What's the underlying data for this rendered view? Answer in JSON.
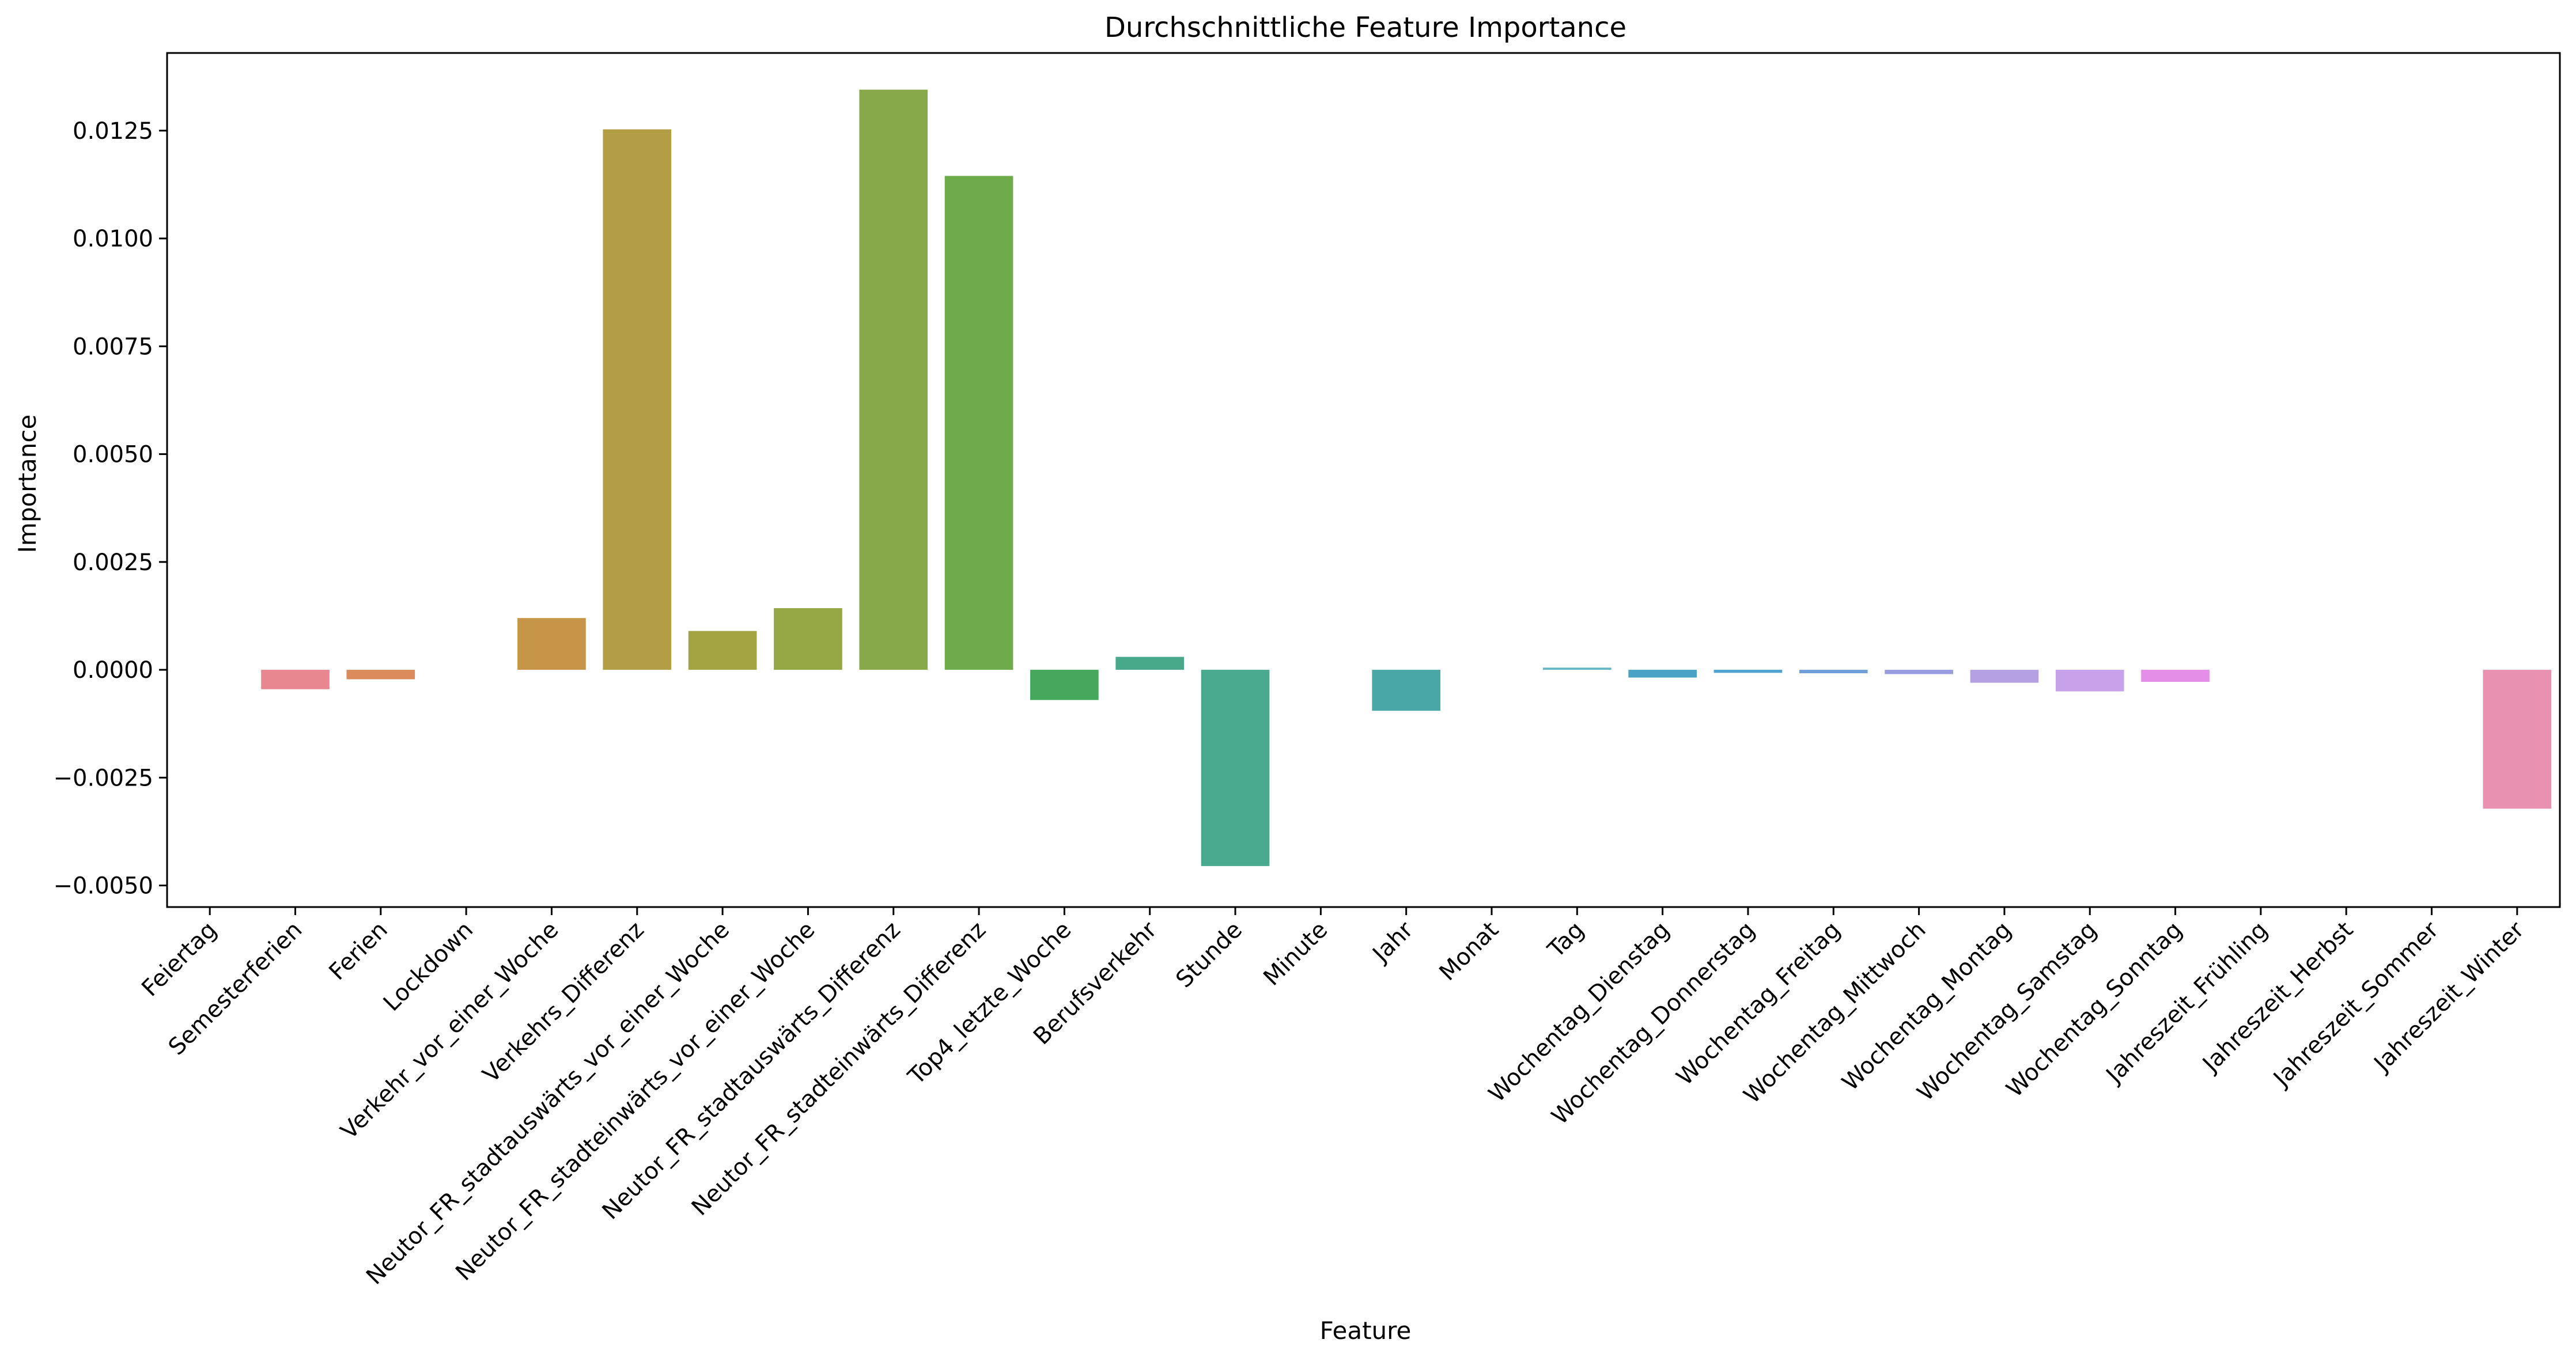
{
  "chart_data": {
    "type": "bar",
    "title": "Durchschnittliche Feature Importance",
    "xlabel": "Feature",
    "ylabel": "Importance",
    "ylim": [
      -0.0055,
      0.0143
    ],
    "yticks": [
      "−0.0050",
      "−0.0025",
      "0.0000",
      "0.0025",
      "0.0050",
      "0.0075",
      "0.0100",
      "0.0125"
    ],
    "ytick_values": [
      -0.005,
      -0.0025,
      0.0,
      0.0025,
      0.005,
      0.0075,
      0.01,
      0.0125
    ],
    "grid": false,
    "legend": "none",
    "categories": [
      "Feiertag",
      "Semesterferien",
      "Ferien",
      "Lockdown",
      "Verkehr_vor_einer_Woche",
      "Verkehrs_Differenz",
      "Neutor_FR_stadtauswärts_vor_einer_Woche",
      "Neutor_FR_stadteinwärts_vor_einer_Woche",
      "Neutor_FR_stadtauswärts_Differenz",
      "Neutor_FR_stadteinwärts_Differenz",
      "Top4_letzte_Woche",
      "Berufsverkehr",
      "Stunde",
      "Minute",
      "Jahr",
      "Monat",
      "Tag",
      "Wochentag_Dienstag",
      "Wochentag_Donnerstag",
      "Wochentag_Freitag",
      "Wochentag_Mittwoch",
      "Wochentag_Montag",
      "Wochentag_Samstag",
      "Wochentag_Sonntag",
      "Jahreszeit_Frühling",
      "Jahreszeit_Herbst",
      "Jahreszeit_Sommer",
      "Jahreszeit_Winter"
    ],
    "values": [
      0.0,
      -0.00045,
      -0.00022,
      0.0,
      0.0012,
      0.01253,
      0.0009,
      0.00143,
      0.01345,
      0.01145,
      -0.0007,
      0.0003,
      -0.00455,
      0.0,
      -0.00095,
      0.0,
      5e-05,
      -0.00018,
      -7e-05,
      -8e-05,
      -0.0001,
      -0.0003,
      -0.0005,
      -0.00028,
      0.0,
      0.0,
      0.0,
      -0.00322
    ],
    "colors": [
      "#f77189",
      "#e8878f",
      "#dc8c5b",
      "#c8964f",
      "#c69547",
      "#b39e46",
      "#a4a443",
      "#95a644",
      "#88a94a",
      "#6eab4b",
      "#46a85c",
      "#48a98a",
      "#4aaa8f",
      "#47aa9e",
      "#49a8a7",
      "#4aa7b0",
      "#64b5c6",
      "#4aa3c4",
      "#4fa2d1",
      "#6f9fd9",
      "#969cdd",
      "#b5a0e4",
      "#c7a2ea",
      "#e48ee8",
      "#ea8ed2",
      "#ee90bf",
      "#ee91b0",
      "#e891b1"
    ]
  }
}
